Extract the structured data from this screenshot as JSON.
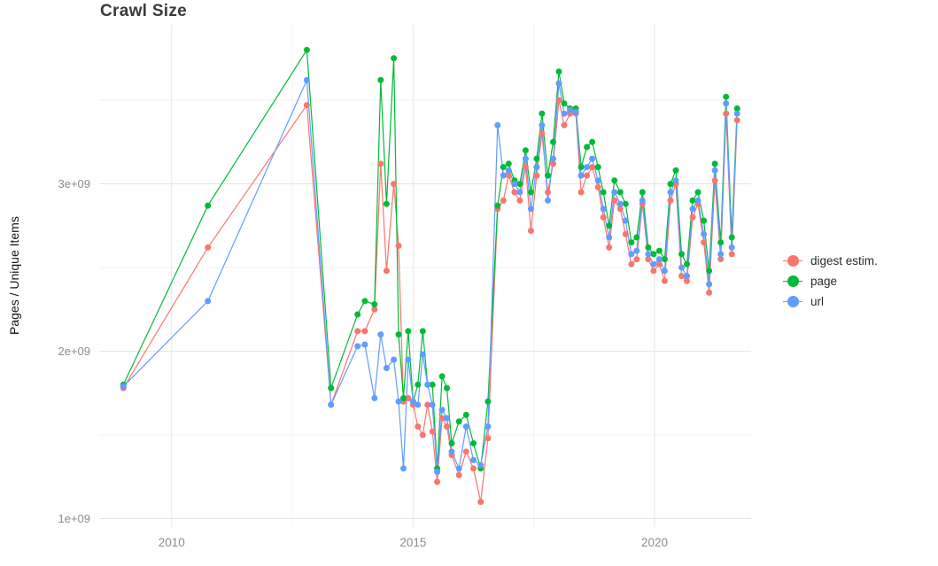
{
  "title": "Crawl Size",
  "axes": {
    "y_label": "Pages / Unique Items",
    "x_ticks": [
      {
        "value": 2010,
        "label": "2010"
      },
      {
        "value": 2015,
        "label": "2015"
      },
      {
        "value": 2020,
        "label": "2020"
      }
    ],
    "y_ticks": [
      {
        "value": 1,
        "label": "1e+09"
      },
      {
        "value": 2,
        "label": "2e+09"
      },
      {
        "value": 3,
        "label": "3e+09"
      }
    ]
  },
  "colors": {
    "digest": "#F8766D",
    "page": "#00BA38",
    "url": "#619CFF",
    "grid_major": "#e4e4e4",
    "grid_minor": "#f2f2f2",
    "tick_label": "#8c8c8c"
  },
  "chart_data": {
    "type": "line",
    "title": "Crawl Size",
    "xlabel": "",
    "ylabel": "Pages / Unique Items",
    "y_values_in": "1e9",
    "xlim": [
      2008.5,
      2022.0
    ],
    "ylim_billions": [
      0.95,
      3.95
    ],
    "grid": {
      "major_x": [
        2010,
        2015,
        2020
      ],
      "minor_x": [
        2012.5,
        2017.5
      ],
      "major_y": [
        1,
        2,
        3
      ],
      "minor_y": [
        1.5,
        2.5,
        3.5
      ]
    },
    "legend_position": "right",
    "x_years": [
      2009.0,
      2010.75,
      2012.8,
      2013.3,
      2013.85,
      2014.0,
      2014.2,
      2014.33,
      2014.45,
      2014.6,
      2014.7,
      2014.8,
      2014.9,
      2015.0,
      2015.1,
      2015.2,
      2015.3,
      2015.4,
      2015.5,
      2015.6,
      2015.7,
      2015.8,
      2015.95,
      2016.1,
      2016.25,
      2016.4,
      2016.55,
      2016.75,
      2016.87,
      2016.98,
      2017.1,
      2017.21,
      2017.33,
      2017.44,
      2017.56,
      2017.67,
      2017.79,
      2017.9,
      2018.02,
      2018.13,
      2018.25,
      2018.37,
      2018.48,
      2018.6,
      2018.71,
      2018.83,
      2018.94,
      2019.06,
      2019.17,
      2019.29,
      2019.4,
      2019.52,
      2019.63,
      2019.75,
      2019.87,
      2019.98,
      2020.1,
      2020.21,
      2020.33,
      2020.44,
      2020.56,
      2020.67,
      2020.79,
      2020.9,
      2021.02,
      2021.13,
      2021.25,
      2021.37,
      2021.48,
      2021.6,
      2021.71
    ],
    "series": [
      {
        "id": "digest",
        "name": "digest estim.",
        "color": "#F8766D",
        "values_billions": [
          1.78,
          2.62,
          3.47,
          1.68,
          2.12,
          2.12,
          2.25,
          3.12,
          2.48,
          3.0,
          2.63,
          1.7,
          1.72,
          1.68,
          1.55,
          1.5,
          1.68,
          1.52,
          1.22,
          1.6,
          1.55,
          1.38,
          1.26,
          1.4,
          1.3,
          1.1,
          1.48,
          2.85,
          2.9,
          3.05,
          2.95,
          2.9,
          3.1,
          2.72,
          3.05,
          3.3,
          2.95,
          3.12,
          3.5,
          3.35,
          3.42,
          3.42,
          2.95,
          3.05,
          3.1,
          2.98,
          2.8,
          2.62,
          2.9,
          2.85,
          2.7,
          2.52,
          2.55,
          2.88,
          2.55,
          2.48,
          2.52,
          2.42,
          2.9,
          3.0,
          2.45,
          2.42,
          2.8,
          2.88,
          2.65,
          2.35,
          3.02,
          2.55,
          3.42,
          2.58,
          3.38
        ]
      },
      {
        "id": "page",
        "name": "page",
        "color": "#00BA38",
        "values_billions": [
          1.8,
          2.87,
          3.8,
          1.78,
          2.22,
          2.3,
          2.28,
          3.62,
          2.88,
          3.75,
          2.1,
          1.72,
          2.12,
          1.7,
          1.8,
          2.12,
          1.8,
          1.8,
          1.3,
          1.85,
          1.78,
          1.45,
          1.58,
          1.62,
          1.45,
          1.3,
          1.7,
          2.87,
          3.1,
          3.12,
          3.02,
          3.0,
          3.2,
          2.95,
          3.15,
          3.42,
          3.05,
          3.25,
          3.67,
          3.48,
          3.45,
          3.45,
          3.1,
          3.22,
          3.25,
          3.1,
          2.95,
          2.75,
          3.02,
          2.95,
          2.88,
          2.65,
          2.68,
          2.95,
          2.62,
          2.58,
          2.6,
          2.55,
          3.0,
          3.08,
          2.58,
          2.52,
          2.9,
          2.95,
          2.78,
          2.48,
          3.12,
          2.65,
          3.52,
          2.68,
          3.45
        ]
      },
      {
        "id": "url",
        "name": "url",
        "color": "#619CFF",
        "values_billions": [
          1.79,
          2.3,
          3.62,
          1.68,
          2.03,
          2.04,
          1.72,
          2.1,
          1.9,
          1.95,
          1.7,
          1.3,
          1.95,
          1.7,
          1.68,
          1.98,
          1.8,
          1.68,
          1.28,
          1.65,
          1.6,
          1.4,
          1.3,
          1.55,
          1.35,
          1.32,
          1.55,
          3.35,
          3.05,
          3.08,
          3.0,
          2.95,
          3.15,
          2.85,
          3.1,
          3.35,
          2.9,
          3.15,
          3.6,
          3.42,
          3.44,
          3.43,
          3.05,
          3.1,
          3.15,
          3.02,
          2.85,
          2.68,
          2.95,
          2.88,
          2.78,
          2.58,
          2.6,
          2.9,
          2.58,
          2.52,
          2.55,
          2.48,
          2.95,
          3.02,
          2.5,
          2.45,
          2.85,
          2.9,
          2.7,
          2.4,
          3.08,
          2.58,
          3.48,
          2.62,
          3.42
        ]
      }
    ]
  }
}
